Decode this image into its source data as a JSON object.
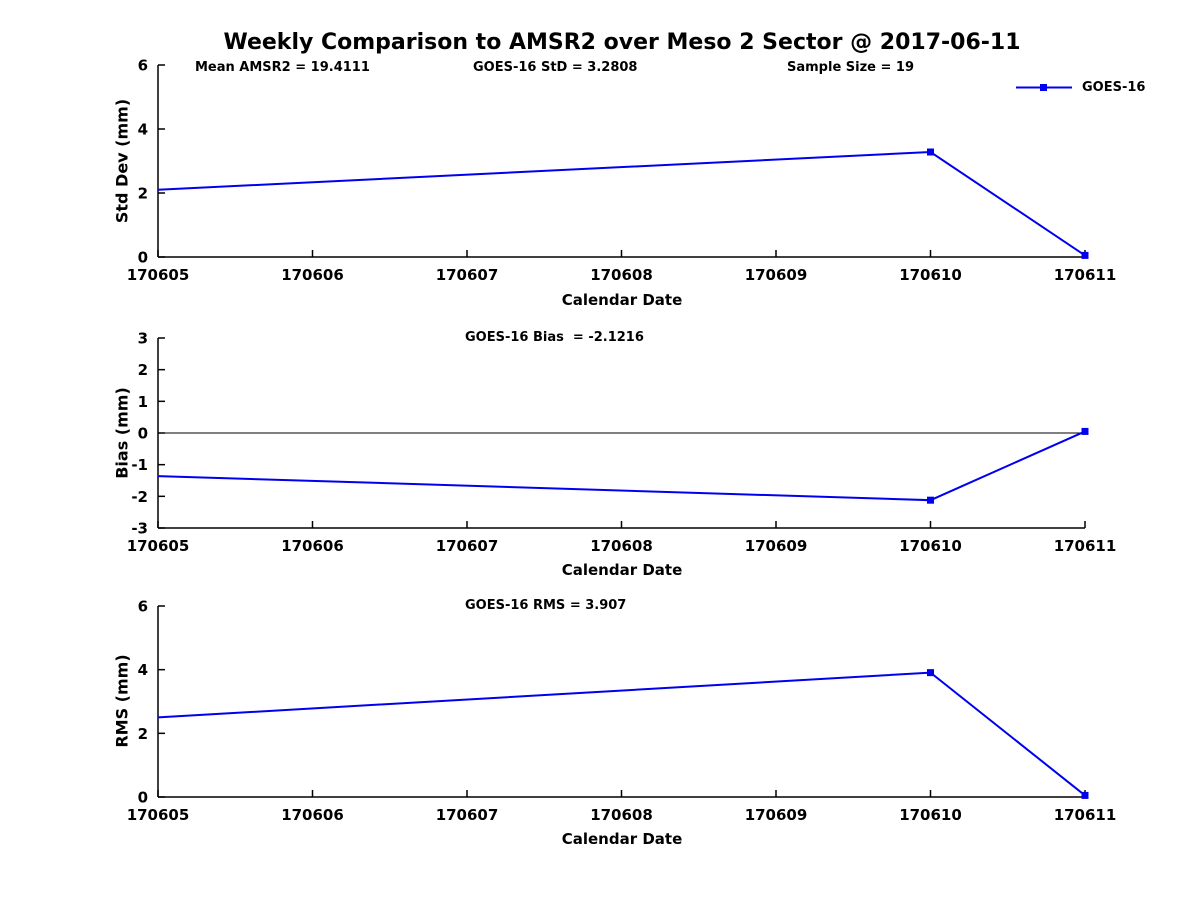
{
  "title": "Weekly Comparison to AMSR2 over Meso 2 Sector @ 2017-06-11",
  "annotations": {
    "mean_amsr2": "Mean AMSR2 = 19.4111",
    "goes16_std": "GOES-16 StD = 3.2808",
    "sample_size": "Sample Size = 19",
    "goes16_bias": "GOES-16 Bias  = -2.1216",
    "goes16_rms": "GOES-16 RMS = 3.907"
  },
  "legend": {
    "label": "GOES-16",
    "color": "#0000EE",
    "marker": "filled-square"
  },
  "stats": {
    "mean_amsr2": 19.4111,
    "goes16_std": 3.2808,
    "sample_size": 19,
    "goes16_bias": -2.1216,
    "goes16_rms": 3.907
  },
  "chart_data": [
    {
      "type": "line",
      "name": "std-dev",
      "xlabel": "Calendar Date",
      "ylabel": "Std Dev (mm)",
      "x": [
        170605,
        170610,
        170611
      ],
      "series": [
        {
          "name": "GOES-16",
          "values": [
            2.1,
            3.2808,
            0.05
          ]
        }
      ],
      "xlim": [
        170605,
        170611
      ],
      "ylim": [
        0,
        6
      ],
      "xticks": [
        "170605",
        "170606",
        "170607",
        "170608",
        "170609",
        "170610",
        "170611"
      ],
      "yticks": [
        0,
        2,
        4,
        6
      ],
      "markers_visible_at": [
        170610,
        170611
      ],
      "line_color": "#0000EE",
      "grid": false,
      "zero_line": false,
      "legend_position": "top-right-outside"
    },
    {
      "type": "line",
      "name": "bias",
      "xlabel": "Calendar Date",
      "ylabel": "Bias (mm)",
      "x": [
        170605,
        170610,
        170611
      ],
      "series": [
        {
          "name": "GOES-16",
          "values": [
            -1.36,
            -2.1216,
            0.05
          ]
        }
      ],
      "xlim": [
        170605,
        170611
      ],
      "ylim": [
        -3,
        3
      ],
      "xticks": [
        "170605",
        "170606",
        "170607",
        "170608",
        "170609",
        "170610",
        "170611"
      ],
      "yticks": [
        -3,
        -2,
        -1,
        0,
        1,
        2,
        3
      ],
      "markers_visible_at": [
        170610,
        170611
      ],
      "line_color": "#0000EE",
      "grid": false,
      "zero_line": true,
      "legend_position": "none"
    },
    {
      "type": "line",
      "name": "rms",
      "xlabel": "Calendar Date",
      "ylabel": "RMS (mm)",
      "x": [
        170605,
        170610,
        170611
      ],
      "series": [
        {
          "name": "GOES-16",
          "values": [
            2.5,
            3.907,
            0.05
          ]
        }
      ],
      "xlim": [
        170605,
        170611
      ],
      "ylim": [
        0,
        6
      ],
      "xticks": [
        "170605",
        "170606",
        "170607",
        "170608",
        "170609",
        "170610",
        "170611"
      ],
      "yticks": [
        0,
        2,
        4,
        6
      ],
      "markers_visible_at": [
        170610,
        170611
      ],
      "line_color": "#0000EE",
      "grid": false,
      "zero_line": false,
      "legend_position": "none"
    }
  ]
}
